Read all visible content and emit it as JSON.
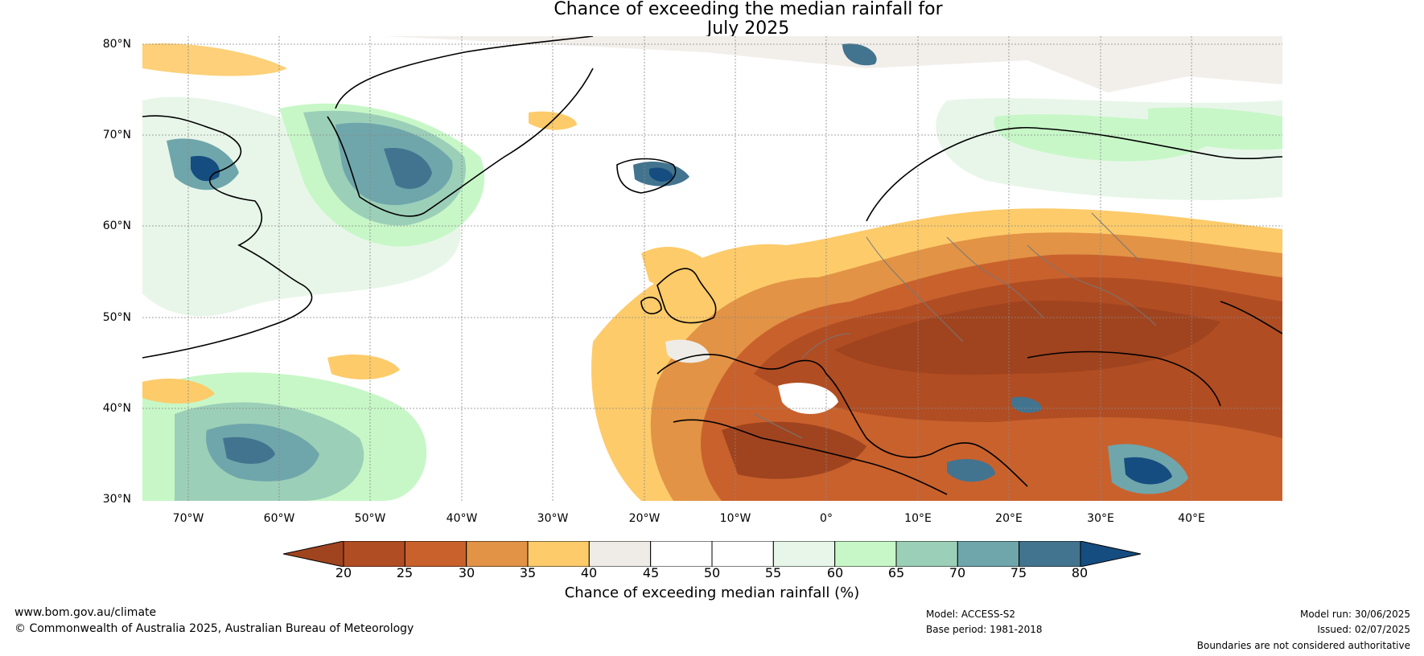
{
  "title": {
    "line1": "Chance of exceeding the median rainfall for",
    "line2": "July 2025"
  },
  "map": {
    "lat_labels": [
      "80°N",
      "70°N",
      "60°N",
      "50°N",
      "40°N",
      "30°N"
    ],
    "lon_labels": [
      "70°W",
      "60°W",
      "50°W",
      "40°W",
      "30°W",
      "20°W",
      "10°W",
      "0°",
      "10°E",
      "20°E",
      "30°E",
      "40°E"
    ],
    "extent": {
      "lon_min": -75,
      "lon_max": 50,
      "lat_min": 30,
      "lat_max": 81
    }
  },
  "colorbar": {
    "ticks": [
      "20",
      "25",
      "30",
      "35",
      "40",
      "45",
      "50",
      "55",
      "60",
      "65",
      "70",
      "75",
      "80"
    ],
    "colors": [
      "#a0441f",
      "#b14d23",
      "#c9612d",
      "#e29345",
      "#fdcb6a",
      "#efebe6",
      "#ffffff",
      "#ffffff",
      "#e8f6e9",
      "#c7f7c7",
      "#9ccfb8",
      "#6fa6ab",
      "#43748f",
      "#164d80"
    ],
    "label": "Chance of exceeding median rainfall (%)"
  },
  "footer": {
    "website": "www.bom.gov.au/climate",
    "copyright": "© Commonwealth of Australia 2025, Australian Bureau of Meteorology",
    "model": "Model: ACCESS-S2",
    "base_period": "Base period: 1981-2018",
    "model_run": "Model run: 30/06/2025",
    "issued": "Issued: 02/07/2025",
    "disclaimer": "Boundaries are not considered authoritative"
  }
}
